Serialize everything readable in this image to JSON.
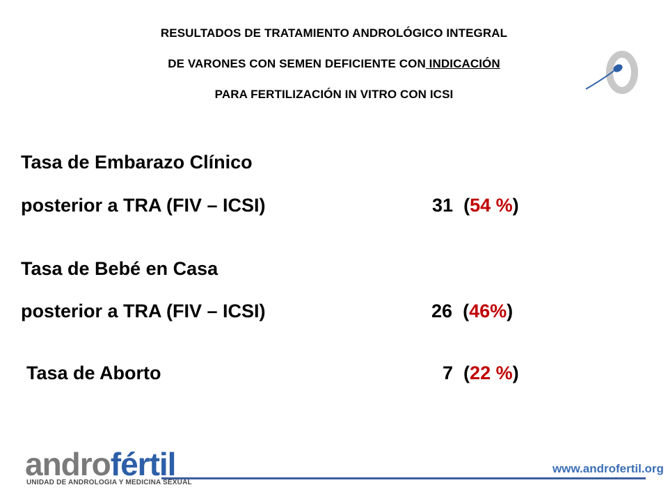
{
  "header": {
    "line1": "RESULTADOS DE TRATAMIENTO ANDROLÓGICO INTEGRAL",
    "line2_a": "DE VARONES CON SEMEN DEFICIENTE CON",
    "line2_b": " INDICACIÓN",
    "line3": "PARA  FERTILIZACIÓN IN VITRO CON ICSI"
  },
  "stats": {
    "embarazo": {
      "label1": "Tasa de Embarazo Clínico",
      "label2": "posterior a TRA (FIV – ICSI)",
      "count": "31",
      "open": "(",
      "percent": "54 %",
      "close": ")"
    },
    "bebe": {
      "label1": "Tasa de Bebé en Casa",
      "label2": "posterior a TRA (FIV – ICSI)",
      "count": "26",
      "open": "(",
      "percent": "46%",
      "close": ")"
    },
    "aborto": {
      "label": "Tasa de Aborto",
      "count": "7",
      "open": "(",
      "percent": "22 %",
      "close": ")"
    }
  },
  "footer": {
    "brand_a": "andro",
    "brand_b": "fértil",
    "subtitle": "UNIDAD DE ANDROLOGIA Y MEDICINA SEXUAL",
    "website": "www.androfertil.org"
  },
  "colors": {
    "accent_red": "#c00000",
    "brand_blue": "#2d5fa8",
    "brand_gray": "#7a7a7a"
  },
  "icons": {
    "top_logo": "sperm-egg-logo-icon"
  }
}
